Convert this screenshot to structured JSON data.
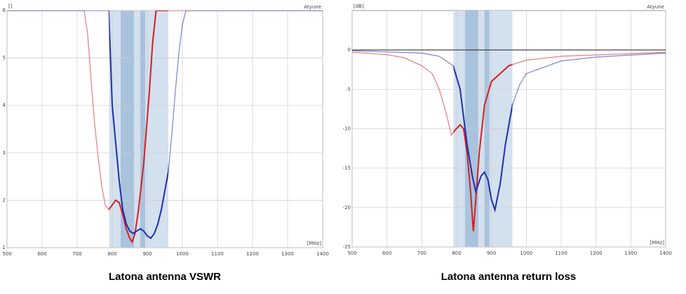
{
  "chart_data": [
    {
      "type": "line",
      "title": "Latona antenna VSWR",
      "y_label": "[]",
      "x_label": "[MHz]",
      "brand": "Atyune",
      "xlim": [
        500,
        1400
      ],
      "xticks": [
        500,
        600,
        700,
        800,
        900,
        1000,
        1100,
        1200,
        1300,
        1400
      ],
      "ylim": [
        1,
        6
      ],
      "yticks": [
        1,
        2,
        3,
        4,
        5,
        6
      ],
      "grid": true,
      "bands": [
        {
          "from": 791,
          "to": 960,
          "color": "#d3e0ee"
        },
        {
          "from": 824,
          "to": 862,
          "color": "#a9c3dc"
        },
        {
          "from": 880,
          "to": 894,
          "color": "#a9c3dc"
        }
      ],
      "series": [
        {
          "color": "#d42020",
          "x": [
            500,
            720,
            730,
            740,
            750,
            760,
            770,
            780,
            790,
            800,
            810,
            820,
            830,
            840,
            850,
            857,
            865,
            875,
            890,
            905,
            915,
            925,
            1400
          ],
          "values": [
            6,
            6,
            5.5,
            4.5,
            3.6,
            2.9,
            2.3,
            1.9,
            1.8,
            1.9,
            2.0,
            1.95,
            1.7,
            1.4,
            1.2,
            1.12,
            1.3,
            1.8,
            2.8,
            4.2,
            5.3,
            6,
            6
          ]
        },
        {
          "color": "#1c2fb0",
          "x": [
            500,
            790,
            795,
            800,
            810,
            820,
            830,
            840,
            850,
            860,
            870,
            880,
            890,
            900,
            910,
            920,
            930,
            940,
            950,
            960,
            970,
            980,
            990,
            1000,
            1010,
            1400
          ],
          "values": [
            6,
            6,
            5,
            4,
            3.2,
            2.4,
            1.8,
            1.5,
            1.35,
            1.3,
            1.35,
            1.4,
            1.35,
            1.25,
            1.2,
            1.3,
            1.5,
            1.8,
            2.2,
            2.6,
            3.4,
            4.3,
            5.1,
            5.7,
            6,
            6
          ]
        }
      ]
    },
    {
      "type": "line",
      "title": "Latona antenna return loss",
      "y_label": "[dB]",
      "x_label": "[MHz]",
      "brand": "Atyune",
      "xlim": [
        500,
        1400
      ],
      "xticks": [
        500,
        600,
        700,
        800,
        900,
        1000,
        1100,
        1200,
        1300,
        1400
      ],
      "ylim": [
        -25,
        5
      ],
      "yticks": [
        -25,
        -20,
        -15,
        -10,
        -5,
        0
      ],
      "grid": true,
      "reference": 0,
      "bands": [
        {
          "from": 791,
          "to": 960,
          "color": "#d3e0ee"
        },
        {
          "from": 824,
          "to": 862,
          "color": "#a9c3dc"
        },
        {
          "from": 880,
          "to": 894,
          "color": "#a9c3dc"
        }
      ],
      "series": [
        {
          "color": "#d42020",
          "x": [
            500,
            600,
            650,
            700,
            730,
            750,
            770,
            785,
            795,
            810,
            820,
            830,
            840,
            848,
            855,
            865,
            880,
            900,
            950,
            1000,
            1100,
            1400
          ],
          "values": [
            -0.3,
            -0.6,
            -1,
            -2,
            -3,
            -5,
            -8,
            -10.8,
            -10.2,
            -9.5,
            -10,
            -13,
            -18,
            -23,
            -19,
            -13,
            -7,
            -4,
            -2,
            -1.3,
            -0.8,
            -0.3
          ]
        },
        {
          "color": "#1c2fb0",
          "x": [
            500,
            700,
            750,
            790,
            810,
            820,
            830,
            845,
            855,
            870,
            880,
            890,
            900,
            910,
            925,
            940,
            960,
            980,
            1000,
            1100,
            1200,
            1400
          ],
          "values": [
            -0.1,
            -0.4,
            -0.8,
            -2,
            -5,
            -8.5,
            -12,
            -16,
            -18,
            -16,
            -15.5,
            -16.5,
            -19,
            -20.3,
            -17,
            -12,
            -7,
            -4.5,
            -3,
            -1.4,
            -0.9,
            -0.4
          ]
        }
      ]
    }
  ]
}
